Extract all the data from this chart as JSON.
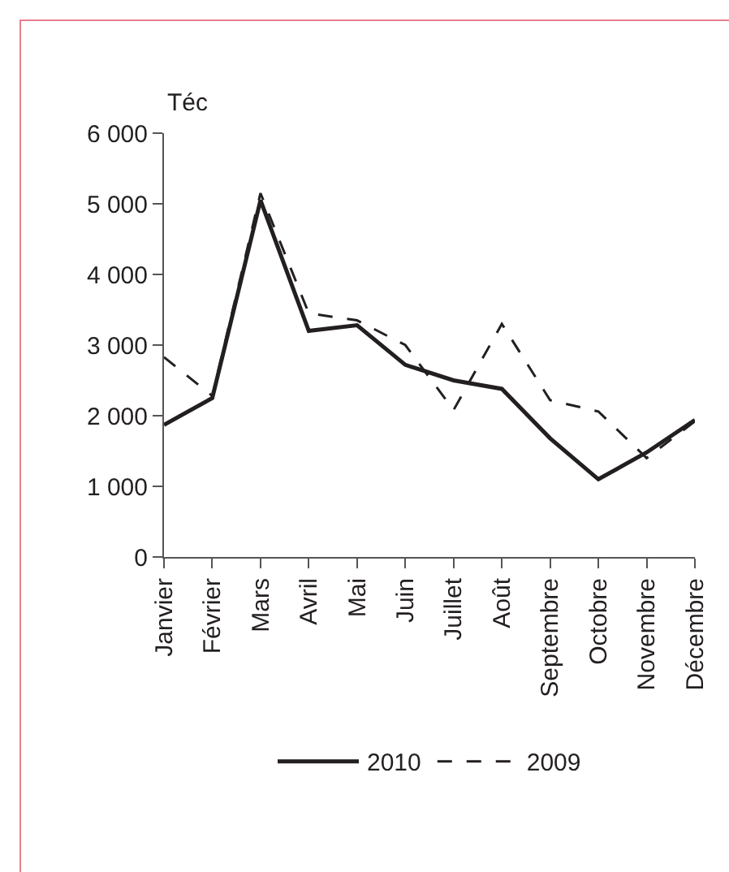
{
  "chart_data": {
    "type": "line",
    "ylabel": "Téc",
    "categories": [
      "Janvier",
      "Février",
      "Mars",
      "Avril",
      "Mai",
      "Juin",
      "Juillet",
      "Août",
      "Septembre",
      "Octobre",
      "Novembre",
      "Décembre"
    ],
    "series": [
      {
        "name": "2010",
        "color": "#231f20",
        "line_style": "solid",
        "values": [
          1870,
          2250,
          5050,
          3200,
          3280,
          2720,
          2500,
          2380,
          1680,
          1100,
          1480,
          1940
        ]
      },
      {
        "name": "2009",
        "color": "#231f20",
        "line_style": "dashed",
        "values": [
          2830,
          2280,
          5150,
          3450,
          3350,
          3000,
          2080,
          3300,
          2220,
          2060,
          1400,
          1920
        ]
      }
    ],
    "ylim": [
      0,
      6000
    ],
    "yticks": [
      {
        "value": 0,
        "label": "0"
      },
      {
        "value": 1000,
        "label": "1 000"
      },
      {
        "value": 2000,
        "label": "2 000"
      },
      {
        "value": 3000,
        "label": "3 000"
      },
      {
        "value": 4000,
        "label": "4 000"
      },
      {
        "value": 5000,
        "label": "5 000"
      },
      {
        "value": 6000,
        "label": "6 000"
      }
    ],
    "grid": false,
    "legend": "bottom",
    "marker": "none"
  }
}
